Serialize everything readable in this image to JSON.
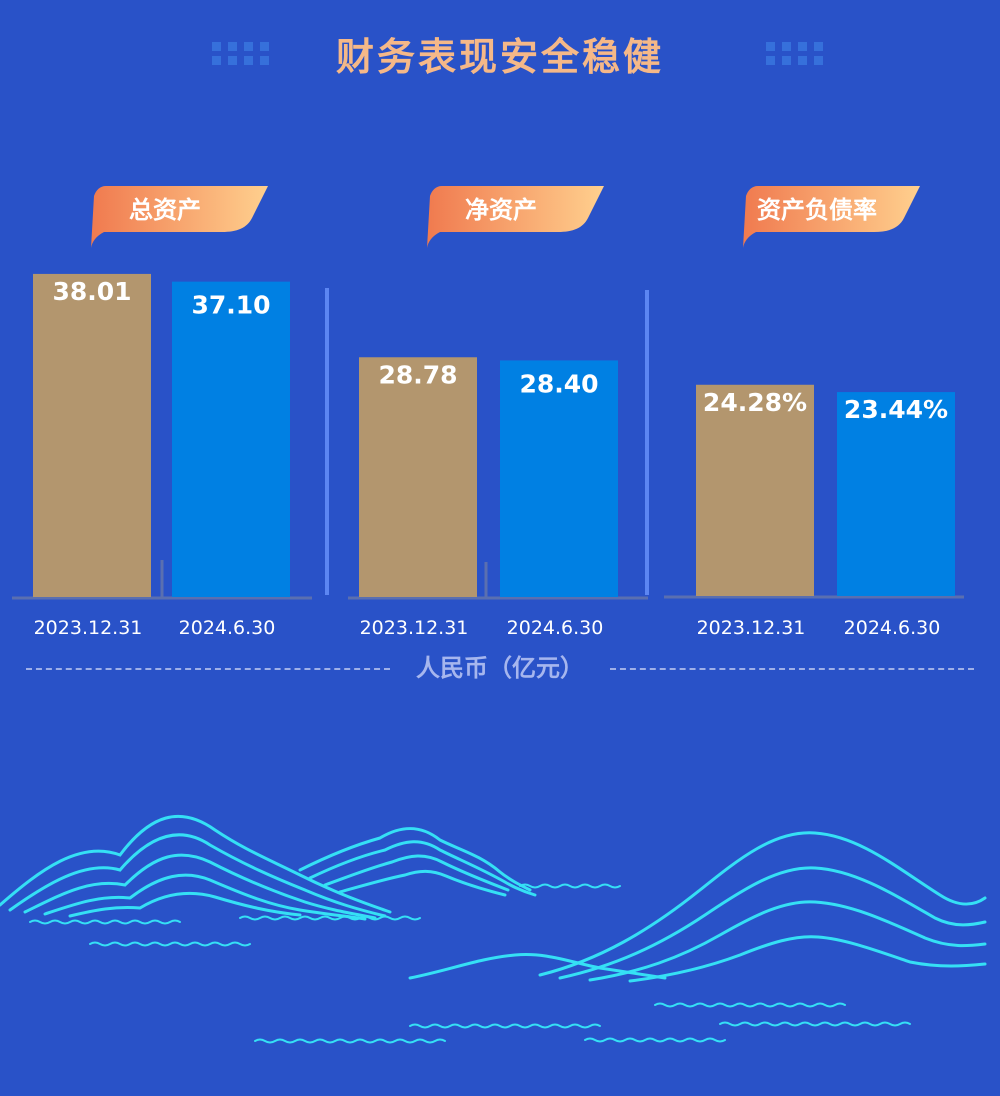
{
  "title": "财务表现安全稳健",
  "unit_note": "人民币（亿元）",
  "colors": {
    "background": "#2952c8",
    "prior": "#b3966e",
    "current": "#0080e3",
    "tag_start": "#f07a4f",
    "tag_end": "#ffd08e",
    "title": "#f5b888",
    "mountain": "#35e0f5"
  },
  "chart_data": [
    {
      "type": "bar",
      "title": "总资产",
      "categories": [
        "2023.12.31",
        "2024.6.30"
      ],
      "values": [
        38.01,
        37.1
      ],
      "value_labels": [
        "38.01",
        "37.10"
      ],
      "unit": "亿元"
    },
    {
      "type": "bar",
      "title": "净资产",
      "categories": [
        "2023.12.31",
        "2024.6.30"
      ],
      "values": [
        28.78,
        28.4
      ],
      "value_labels": [
        "28.78",
        "28.40"
      ],
      "unit": "亿元"
    },
    {
      "type": "bar",
      "title": "资产负债率",
      "categories": [
        "2023.12.31",
        "2024.6.30"
      ],
      "values": [
        24.28,
        23.44
      ],
      "value_labels": [
        "24.28%",
        "23.44%"
      ],
      "unit": "%"
    }
  ]
}
